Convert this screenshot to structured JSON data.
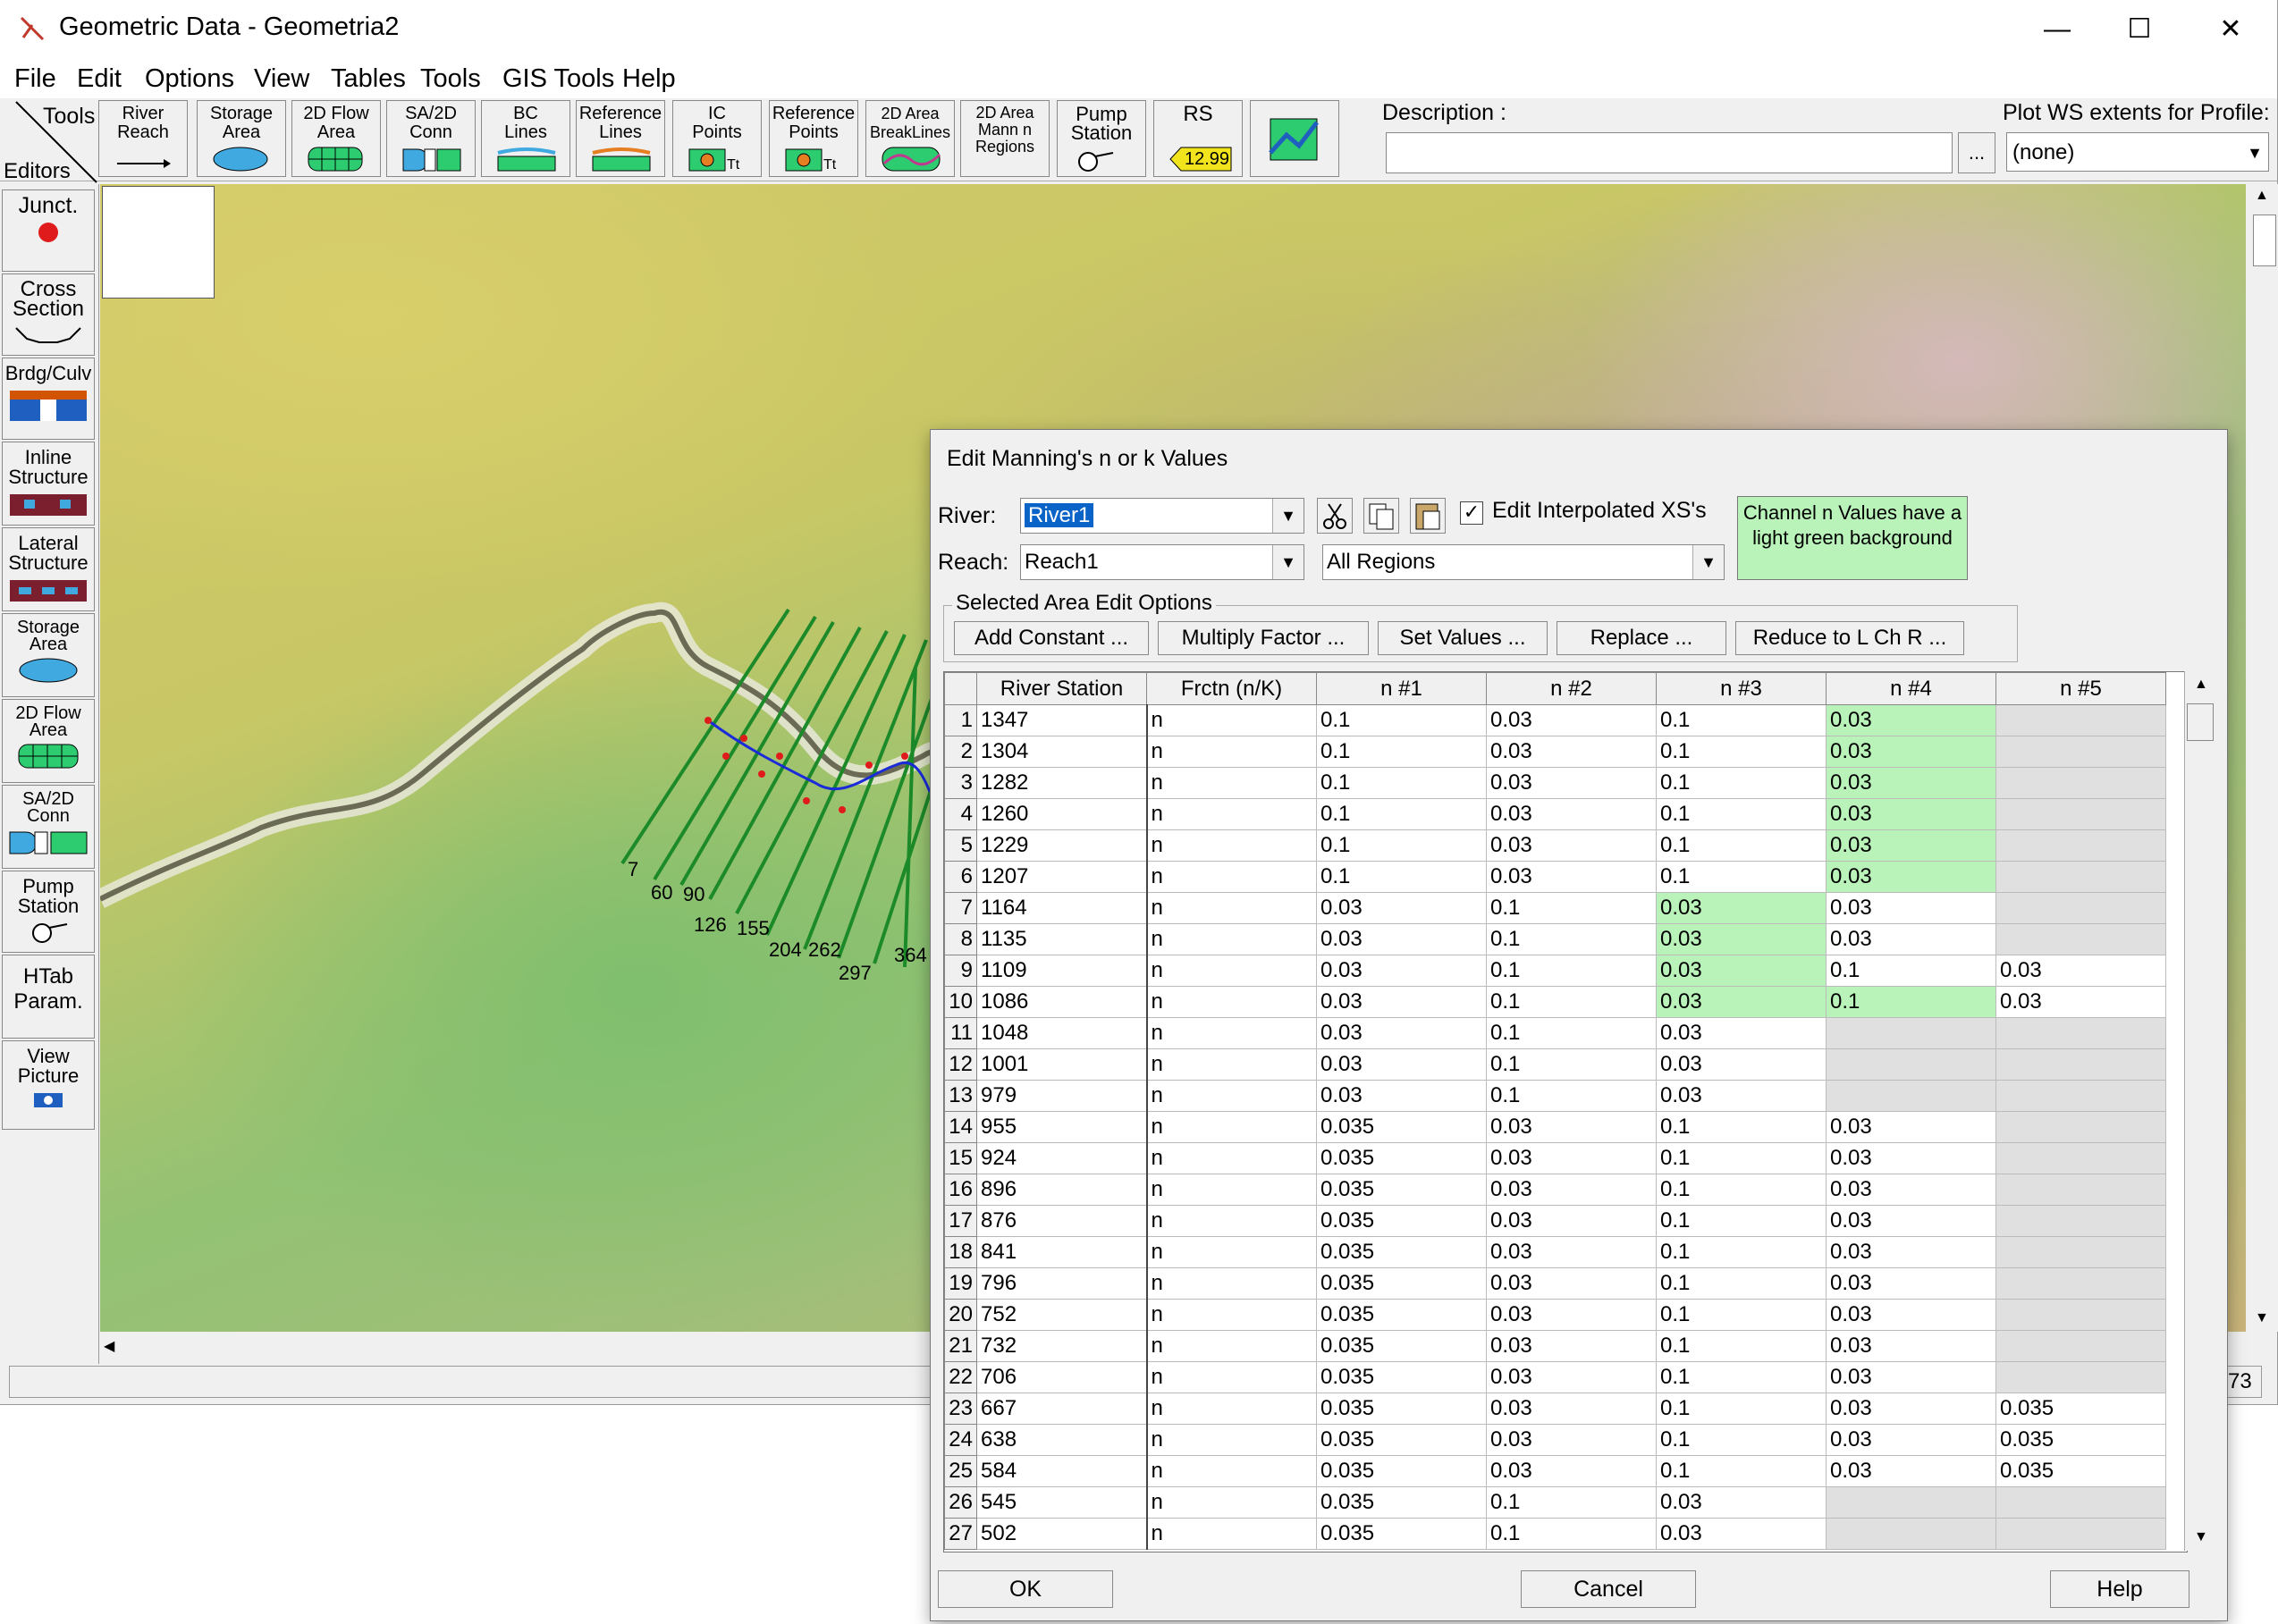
{
  "window": {
    "title": "Geometric Data - Geometria2",
    "minimize": "—",
    "maximize": "☐",
    "close": "✕"
  },
  "menu": [
    "File",
    "Edit",
    "Options",
    "View",
    "Tables",
    "Tools",
    "GIS Tools",
    "Help"
  ],
  "toolbar": {
    "tools_label": "Tools",
    "editors_label": "Editors",
    "buttons": [
      {
        "label": "River\nReach"
      },
      {
        "label": "Storage\nArea"
      },
      {
        "label": "2D Flow\nArea"
      },
      {
        "label": "SA/2D\nConn"
      },
      {
        "label": "BC\nLines"
      },
      {
        "label": "Reference\nLines"
      },
      {
        "label": "IC\nPoints"
      },
      {
        "label": "Reference\nPoints"
      },
      {
        "label": "2D Area\nBreakLines"
      },
      {
        "label": "2D Area\nMann n\nRegions"
      },
      {
        "label": "Pump\nStation"
      },
      {
        "label": "RS",
        "value": "12.99"
      },
      {
        "label": ""
      }
    ],
    "description_label": "Description :",
    "description_value": "",
    "description_btn": "...",
    "plot_label": "Plot WS extents for Profile:",
    "plot_value": "(none)"
  },
  "editors": [
    {
      "label": "Junct."
    },
    {
      "label": "Cross\nSection"
    },
    {
      "label": "Brdg/Culv"
    },
    {
      "label": "Inline\nStructure"
    },
    {
      "label": "Lateral\nStructure"
    },
    {
      "label": "Storage\nArea"
    },
    {
      "label": "2D Flow\nArea"
    },
    {
      "label": "SA/2D\nConn"
    },
    {
      "label": "Pump\nStation"
    },
    {
      "label": "HTab\nParam."
    },
    {
      "label": "View\nPicture"
    }
  ],
  "map": {
    "xs_labels": [
      "7",
      "60",
      "90",
      "126",
      "155",
      "204",
      "262",
      "297",
      "364"
    ]
  },
  "status": {
    "right_value": "73"
  },
  "dialog": {
    "title": "Edit Manning's n or k Values",
    "river_label": "River:",
    "river_value": "River1",
    "reach_label": "Reach:",
    "reach_value": "Reach1",
    "regions_value": "All Regions",
    "edit_interpolated_label": "Edit Interpolated XS's",
    "edit_interpolated_checked": "✓",
    "note": "Channel n Values have a light green background",
    "group_title": "Selected Area Edit Options",
    "group_buttons": [
      "Add Constant ...",
      "Multiply Factor ...",
      "Set Values ...",
      "Replace ...",
      "Reduce to L Ch R ..."
    ],
    "columns": [
      "",
      "River Station",
      "Frctn (n/K)",
      "n #1",
      "n #2",
      "n #3",
      "n #4",
      "n #5"
    ],
    "rows": [
      {
        "n": "1",
        "rs": "1347",
        "f": "n",
        "v": [
          "0.1",
          "0.03",
          "0.1",
          "0.03",
          ""
        ],
        "ch": 3
      },
      {
        "n": "2",
        "rs": "1304",
        "f": "n",
        "v": [
          "0.1",
          "0.03",
          "0.1",
          "0.03",
          ""
        ],
        "ch": 3
      },
      {
        "n": "3",
        "rs": "1282",
        "f": "n",
        "v": [
          "0.1",
          "0.03",
          "0.1",
          "0.03",
          ""
        ],
        "ch": 3
      },
      {
        "n": "4",
        "rs": "1260",
        "f": "n",
        "v": [
          "0.1",
          "0.03",
          "0.1",
          "0.03",
          ""
        ],
        "ch": 3
      },
      {
        "n": "5",
        "rs": "1229",
        "f": "n",
        "v": [
          "0.1",
          "0.03",
          "0.1",
          "0.03",
          ""
        ],
        "ch": 3
      },
      {
        "n": "6",
        "rs": "1207",
        "f": "n",
        "v": [
          "0.1",
          "0.03",
          "0.1",
          "0.03",
          ""
        ],
        "ch": 3
      },
      {
        "n": "7",
        "rs": "1164",
        "f": "n",
        "v": [
          "0.03",
          "0.1",
          "0.03",
          "0.03",
          ""
        ],
        "ch": 2
      },
      {
        "n": "8",
        "rs": "1135",
        "f": "n",
        "v": [
          "0.03",
          "0.1",
          "0.03",
          "0.03",
          ""
        ],
        "ch": 2
      },
      {
        "n": "9",
        "rs": "1109",
        "f": "n",
        "v": [
          "0.03",
          "0.1",
          "0.03",
          "0.1",
          "0.03"
        ],
        "ch": 2
      },
      {
        "n": "10",
        "rs": "1086",
        "f": "n",
        "v": [
          "0.03",
          "0.1",
          "0.03",
          "0.1",
          "0.03"
        ],
        "ch": 2,
        "ch2": 3
      },
      {
        "n": "11",
        "rs": "1048",
        "f": "n",
        "v": [
          "0.03",
          "0.1",
          "0.03",
          "",
          ""
        ],
        "ch": -1
      },
      {
        "n": "12",
        "rs": "1001",
        "f": "n",
        "v": [
          "0.03",
          "0.1",
          "0.03",
          "",
          ""
        ],
        "ch": -1
      },
      {
        "n": "13",
        "rs": "979",
        "f": "n",
        "v": [
          "0.03",
          "0.1",
          "0.03",
          "",
          ""
        ],
        "ch": -1
      },
      {
        "n": "14",
        "rs": "955",
        "f": "n",
        "v": [
          "0.035",
          "0.03",
          "0.1",
          "0.03",
          ""
        ],
        "ch": -1
      },
      {
        "n": "15",
        "rs": "924",
        "f": "n",
        "v": [
          "0.035",
          "0.03",
          "0.1",
          "0.03",
          ""
        ],
        "ch": -1
      },
      {
        "n": "16",
        "rs": "896",
        "f": "n",
        "v": [
          "0.035",
          "0.03",
          "0.1",
          "0.03",
          ""
        ],
        "ch": -1
      },
      {
        "n": "17",
        "rs": "876",
        "f": "n",
        "v": [
          "0.035",
          "0.03",
          "0.1",
          "0.03",
          ""
        ],
        "ch": -1
      },
      {
        "n": "18",
        "rs": "841",
        "f": "n",
        "v": [
          "0.035",
          "0.03",
          "0.1",
          "0.03",
          ""
        ],
        "ch": -1
      },
      {
        "n": "19",
        "rs": "796",
        "f": "n",
        "v": [
          "0.035",
          "0.03",
          "0.1",
          "0.03",
          ""
        ],
        "ch": -1
      },
      {
        "n": "20",
        "rs": "752",
        "f": "n",
        "v": [
          "0.035",
          "0.03",
          "0.1",
          "0.03",
          ""
        ],
        "ch": -1
      },
      {
        "n": "21",
        "rs": "732",
        "f": "n",
        "v": [
          "0.035",
          "0.03",
          "0.1",
          "0.03",
          ""
        ],
        "ch": -1
      },
      {
        "n": "22",
        "rs": "706",
        "f": "n",
        "v": [
          "0.035",
          "0.03",
          "0.1",
          "0.03",
          ""
        ],
        "ch": -1
      },
      {
        "n": "23",
        "rs": "667",
        "f": "n",
        "v": [
          "0.035",
          "0.03",
          "0.1",
          "0.03",
          "0.035"
        ],
        "ch": -1
      },
      {
        "n": "24",
        "rs": "638",
        "f": "n",
        "v": [
          "0.035",
          "0.03",
          "0.1",
          "0.03",
          "0.035"
        ],
        "ch": -1
      },
      {
        "n": "25",
        "rs": "584",
        "f": "n",
        "v": [
          "0.035",
          "0.03",
          "0.1",
          "0.03",
          "0.035"
        ],
        "ch": -1
      },
      {
        "n": "26",
        "rs": "545",
        "f": "n",
        "v": [
          "0.035",
          "0.1",
          "0.03",
          "",
          ""
        ],
        "ch": -1
      },
      {
        "n": "27",
        "rs": "502",
        "f": "n",
        "v": [
          "0.035",
          "0.1",
          "0.03",
          "",
          ""
        ],
        "ch": -1
      }
    ],
    "ok_label": "OK",
    "cancel_label": "Cancel",
    "help_label": "Help"
  },
  "colors": {
    "channel_green": "#b9f3b9",
    "blank_cell": "#e0e0e0",
    "selection_blue": "#0a64c8"
  }
}
